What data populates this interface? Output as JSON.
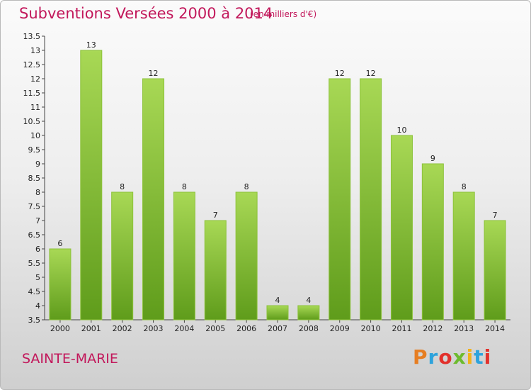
{
  "header": {
    "title": "Subventions Versées 2000 à 2014",
    "subtitle": "(en milliers d'€)"
  },
  "footer": {
    "commune": "SAINTE-MARIE",
    "logo_text": "Proxiti",
    "logo_colors": [
      "#e67e22",
      "#2ea3dc",
      "#e2312c",
      "#6dbb2e",
      "#f2b21b",
      "#2ea3dc",
      "#e2312c"
    ]
  },
  "colors": {
    "bar_top": "#a8d855",
    "bar_bottom": "#5f9c1b",
    "text_accent": "#c2185b"
  },
  "chart_data": {
    "type": "bar",
    "title": "Subventions Versées 2000 à 2014",
    "subtitle": "(en milliers d'€)",
    "xlabel": "",
    "ylabel": "",
    "categories": [
      "2000",
      "2001",
      "2002",
      "2003",
      "2004",
      "2005",
      "2006",
      "2007",
      "2008",
      "2009",
      "2010",
      "2011",
      "2012",
      "2013",
      "2014"
    ],
    "values": [
      6,
      13,
      8,
      12,
      8,
      7,
      8,
      4,
      4,
      12,
      12,
      10,
      9,
      8,
      7
    ],
    "ylim": [
      3.5,
      13.5
    ],
    "yticks": [
      "3.5",
      "4",
      "4.5",
      "5",
      "5.5",
      "6",
      "6.5",
      "7",
      "7.5",
      "8",
      "8.5",
      "9",
      "9.5",
      "10",
      "10.5",
      "11",
      "11.5",
      "12",
      "12.5",
      "13",
      "13.5"
    ],
    "grid": false,
    "legend": "none",
    "data_labels": true
  }
}
